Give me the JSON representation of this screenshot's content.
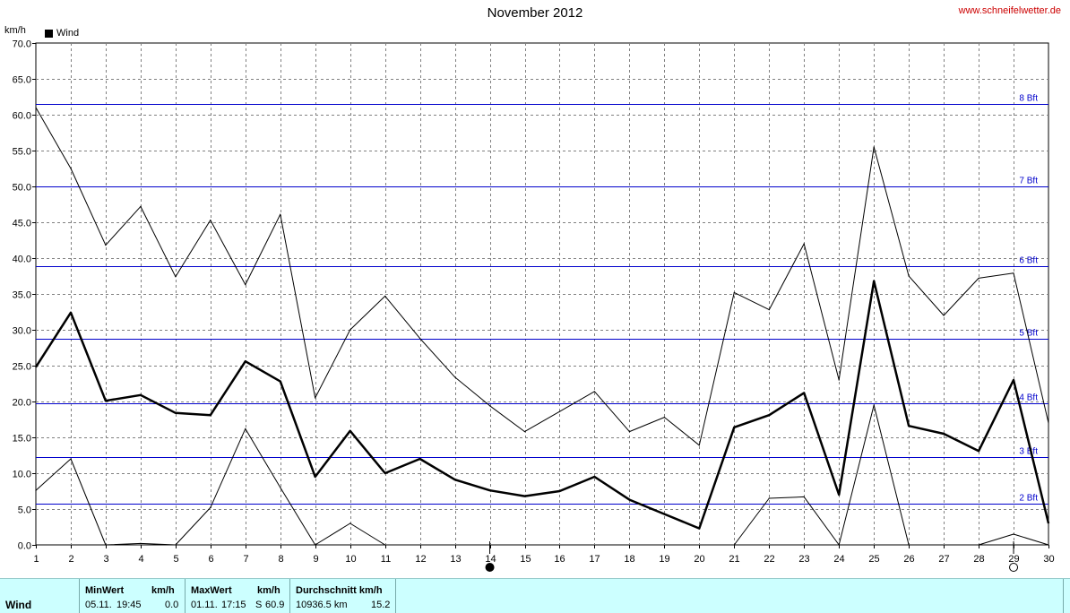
{
  "header": {
    "title": "November 2012",
    "site": "www.schneifelwetter.de",
    "unit": "km/h",
    "legend": "Wind"
  },
  "colors": {
    "grid": "#808080",
    "bft": "#0000cc",
    "line": "#000000",
    "footer_bg": "#ccffff",
    "site": "#cc0000"
  },
  "chart_data": {
    "type": "line",
    "title": "November 2012",
    "ylabel": "km/h",
    "ylim": [
      0,
      70
    ],
    "xlim": [
      1,
      30
    ],
    "y_ticks": [
      "0.0",
      "5.0",
      "10.0",
      "15.0",
      "20.0",
      "25.0",
      "30.0",
      "35.0",
      "40.0",
      "45.0",
      "50.0",
      "55.0",
      "60.0",
      "65.0",
      "70.0"
    ],
    "x": [
      1,
      2,
      3,
      4,
      5,
      6,
      7,
      8,
      9,
      10,
      11,
      12,
      13,
      14,
      15,
      16,
      17,
      18,
      19,
      20,
      21,
      22,
      23,
      24,
      25,
      26,
      27,
      28,
      29,
      30
    ],
    "series": [
      {
        "name": "Wind",
        "width": 2.5,
        "values": [
          24.8,
          32.4,
          20.1,
          20.9,
          18.4,
          18.1,
          25.6,
          22.8,
          9.5,
          15.9,
          10.0,
          12.0,
          9.1,
          7.6,
          6.8,
          7.5,
          9.5,
          6.3,
          4.3,
          2.3,
          16.4,
          18.1,
          21.2,
          7.0,
          36.8,
          16.6,
          15.5,
          13.1,
          23.0,
          3.0
        ]
      },
      {
        "width": 1,
        "values": [
          61.0,
          52.5,
          41.8,
          47.2,
          37.4,
          45.3,
          36.3,
          46.1,
          20.5,
          30.0,
          34.7,
          28.8,
          23.4,
          19.4,
          15.8,
          18.6,
          21.4,
          15.8,
          17.8,
          13.9,
          35.2,
          32.8,
          42.0,
          23.0,
          55.5,
          37.5,
          32.0,
          37.2,
          37.9,
          17.0
        ]
      },
      {
        "width": 1,
        "values": [
          7.6,
          12.0,
          0.0,
          0.2,
          0.0,
          5.2,
          16.2,
          8.0,
          0.0,
          3.0,
          0.0,
          null,
          null,
          null,
          null,
          null,
          null,
          null,
          null,
          null,
          0.0,
          6.5,
          6.7,
          0.0,
          19.5,
          0.0,
          null,
          0.0,
          1.5,
          0.0
        ]
      }
    ],
    "beaufort_lines": [
      {
        "label": "2 Bft",
        "value": 5.7
      },
      {
        "label": "3 Bft",
        "value": 12.2
      },
      {
        "label": "4 Bft",
        "value": 19.7
      },
      {
        "label": "5 Bft",
        "value": 28.7
      },
      {
        "label": "6 Bft",
        "value": 38.9
      },
      {
        "label": "7 Bft",
        "value": 50.0
      },
      {
        "label": "8 Bft",
        "value": 61.5
      }
    ],
    "moon_phases": [
      {
        "day": 14,
        "phase": "new"
      },
      {
        "day": 29,
        "phase": "full"
      }
    ],
    "grid": true
  },
  "footer": {
    "row_label": "Wind",
    "min": {
      "label": "MinWert",
      "unit": "km/h",
      "date": "05.11.",
      "time": "19:45",
      "value": "0.0"
    },
    "max": {
      "label": "MaxWert",
      "unit": "km/h",
      "date": "01.11.",
      "time": "17:15",
      "dir": "S",
      "value": "60.9"
    },
    "avg": {
      "label": "Durchschnitt km/h",
      "distance": "10936.5 km",
      "value": "15.2"
    }
  }
}
